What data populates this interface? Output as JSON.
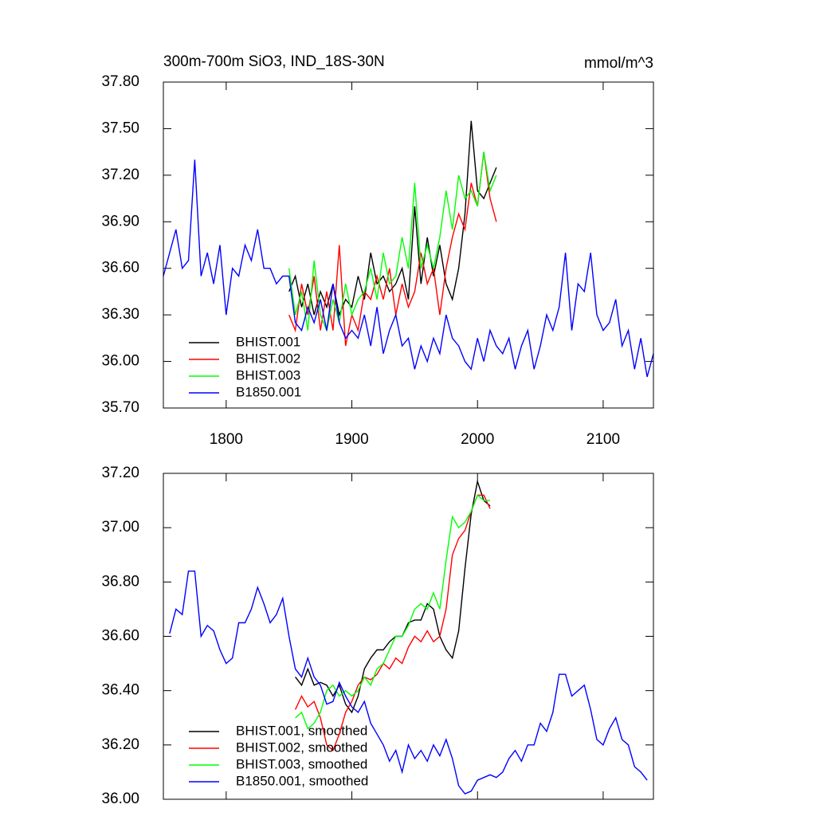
{
  "chart_data": [
    {
      "type": "line",
      "title": "300m-700m SiO3, IND_18S-30N",
      "units": "mmol/m^3",
      "xlim": [
        1750,
        2140
      ],
      "xticks": [
        1800,
        1900,
        2000,
        2100
      ],
      "ylim": [
        35.7,
        37.8
      ],
      "yticks": [
        {
          "value": 35.7,
          "label": "35.70"
        },
        {
          "value": 36.0,
          "label": "36.00"
        },
        {
          "value": 36.3,
          "label": "36.30"
        },
        {
          "value": 36.6,
          "label": "36.60"
        },
        {
          "value": 36.9,
          "label": "36.90"
        },
        {
          "value": 37.2,
          "label": "37.20"
        },
        {
          "value": 37.5,
          "label": "37.50"
        },
        {
          "value": 37.8,
          "label": "37.80"
        }
      ],
      "series": [
        {
          "name": "BHIST.001",
          "color": "#000000",
          "x": [
            1850,
            1855,
            1860,
            1865,
            1870,
            1875,
            1880,
            1885,
            1890,
            1895,
            1900,
            1905,
            1910,
            1915,
            1920,
            1925,
            1930,
            1935,
            1940,
            1945,
            1950,
            1955,
            1960,
            1965,
            1970,
            1975,
            1980,
            1985,
            1990,
            1995,
            2000,
            2005,
            2010,
            2015
          ],
          "values": [
            36.45,
            36.55,
            36.35,
            36.5,
            36.3,
            36.45,
            36.35,
            36.5,
            36.3,
            36.4,
            36.35,
            36.55,
            36.4,
            36.7,
            36.5,
            36.55,
            36.45,
            36.5,
            36.6,
            36.4,
            37.0,
            36.5,
            36.8,
            36.55,
            36.75,
            36.5,
            36.4,
            36.6,
            36.95,
            37.55,
            37.1,
            37.05,
            37.15,
            37.25
          ]
        },
        {
          "name": "BHIST.002",
          "color": "#ff0000",
          "x": [
            1850,
            1855,
            1860,
            1865,
            1870,
            1875,
            1880,
            1885,
            1890,
            1895,
            1900,
            1905,
            1910,
            1915,
            1920,
            1925,
            1930,
            1935,
            1940,
            1945,
            1950,
            1955,
            1960,
            1965,
            1970,
            1975,
            1980,
            1985,
            1990,
            1995,
            2000,
            2005,
            2010,
            2015
          ],
          "values": [
            36.3,
            36.2,
            36.5,
            36.3,
            36.55,
            36.2,
            36.45,
            36.2,
            36.75,
            36.1,
            36.3,
            36.2,
            36.45,
            36.4,
            36.55,
            36.4,
            36.6,
            36.3,
            36.5,
            36.35,
            36.45,
            36.7,
            36.5,
            36.6,
            36.3,
            36.6,
            36.8,
            36.95,
            36.85,
            37.15,
            37.0,
            37.35,
            37.05,
            36.9
          ]
        },
        {
          "name": "BHIST.003",
          "color": "#00ff00",
          "x": [
            1850,
            1855,
            1860,
            1865,
            1870,
            1875,
            1880,
            1885,
            1890,
            1895,
            1900,
            1905,
            1910,
            1915,
            1920,
            1925,
            1930,
            1935,
            1940,
            1945,
            1950,
            1955,
            1960,
            1965,
            1970,
            1975,
            1980,
            1985,
            1990,
            1995,
            2000,
            2005,
            2010,
            2015
          ],
          "values": [
            36.6,
            36.3,
            36.45,
            36.2,
            36.65,
            36.3,
            36.2,
            36.4,
            36.25,
            36.5,
            36.3,
            36.4,
            36.45,
            36.6,
            36.4,
            36.7,
            36.5,
            36.55,
            36.8,
            36.6,
            37.15,
            36.6,
            36.75,
            36.6,
            36.8,
            37.1,
            36.85,
            37.2,
            37.05,
            37.1,
            37.0,
            37.35,
            37.1,
            37.2
          ]
        },
        {
          "name": "B1850.001",
          "color": "#0000ff",
          "x": [
            1750,
            1755,
            1760,
            1765,
            1770,
            1775,
            1780,
            1785,
            1790,
            1795,
            1800,
            1805,
            1810,
            1815,
            1820,
            1825,
            1830,
            1835,
            1840,
            1845,
            1850,
            1855,
            1860,
            1865,
            1870,
            1875,
            1880,
            1885,
            1890,
            1895,
            1900,
            1905,
            1910,
            1915,
            1920,
            1925,
            1930,
            1935,
            1940,
            1945,
            1950,
            1955,
            1960,
            1965,
            1970,
            1975,
            1980,
            1985,
            1990,
            1995,
            2000,
            2005,
            2010,
            2015,
            2020,
            2025,
            2030,
            2035,
            2040,
            2045,
            2050,
            2055,
            2060,
            2065,
            2070,
            2075,
            2080,
            2085,
            2090,
            2095,
            2100,
            2105,
            2110,
            2115,
            2120,
            2125,
            2130,
            2135,
            2140
          ],
          "values": [
            36.55,
            36.7,
            36.85,
            36.6,
            36.65,
            37.3,
            36.55,
            36.7,
            36.5,
            36.75,
            36.3,
            36.6,
            36.55,
            36.75,
            36.65,
            36.85,
            36.6,
            36.6,
            36.5,
            36.55,
            36.55,
            36.25,
            36.2,
            36.35,
            36.25,
            36.4,
            36.2,
            36.5,
            36.25,
            36.15,
            36.2,
            36.15,
            36.3,
            36.1,
            36.35,
            36.05,
            36.2,
            36.3,
            36.1,
            36.15,
            35.95,
            36.1,
            36.0,
            36.15,
            36.05,
            36.3,
            36.15,
            36.1,
            36.0,
            35.95,
            36.15,
            36.0,
            36.2,
            36.1,
            36.05,
            36.15,
            35.95,
            36.1,
            36.2,
            35.95,
            36.1,
            36.3,
            36.2,
            36.35,
            36.7,
            36.2,
            36.5,
            36.45,
            36.7,
            36.3,
            36.2,
            36.25,
            36.4,
            36.1,
            36.2,
            35.95,
            36.15,
            35.9,
            36.05
          ]
        }
      ]
    },
    {
      "type": "line",
      "xlim": [
        1750,
        2140
      ],
      "ylim": [
        36.0,
        37.2
      ],
      "yticks": [
        {
          "value": 36.0,
          "label": "36.00"
        },
        {
          "value": 36.2,
          "label": "36.20"
        },
        {
          "value": 36.4,
          "label": "36.40"
        },
        {
          "value": 36.6,
          "label": "36.60"
        },
        {
          "value": 36.8,
          "label": "36.80"
        },
        {
          "value": 37.0,
          "label": "37.00"
        },
        {
          "value": 37.2,
          "label": "37.20"
        }
      ],
      "series": [
        {
          "name": "BHIST.001, smoothed",
          "color": "#000000",
          "x": [
            1855,
            1860,
            1865,
            1870,
            1875,
            1880,
            1885,
            1890,
            1895,
            1900,
            1905,
            1910,
            1915,
            1920,
            1925,
            1930,
            1935,
            1940,
            1945,
            1950,
            1955,
            1960,
            1965,
            1970,
            1975,
            1980,
            1985,
            1990,
            1995,
            2000,
            2005,
            2010
          ],
          "values": [
            36.45,
            36.42,
            36.48,
            36.42,
            36.43,
            36.42,
            36.38,
            36.42,
            36.35,
            36.32,
            36.38,
            36.48,
            36.52,
            36.55,
            36.55,
            36.58,
            36.6,
            36.6,
            36.65,
            36.66,
            36.66,
            36.72,
            36.7,
            36.6,
            36.55,
            36.52,
            36.62,
            36.85,
            37.05,
            37.17,
            37.1,
            37.08
          ]
        },
        {
          "name": "BHIST.002, smoothed",
          "color": "#ff0000",
          "x": [
            1855,
            1860,
            1865,
            1870,
            1875,
            1880,
            1885,
            1890,
            1895,
            1900,
            1905,
            1910,
            1915,
            1920,
            1925,
            1930,
            1935,
            1940,
            1945,
            1950,
            1955,
            1960,
            1965,
            1970,
            1975,
            1980,
            1985,
            1990,
            1995,
            2000,
            2005,
            2010
          ],
          "values": [
            36.33,
            36.38,
            36.34,
            36.36,
            36.3,
            36.2,
            36.18,
            36.24,
            36.32,
            36.36,
            36.42,
            36.45,
            36.44,
            36.46,
            36.5,
            36.48,
            36.52,
            36.5,
            36.56,
            36.6,
            36.58,
            36.62,
            36.58,
            36.6,
            36.7,
            36.9,
            36.96,
            36.99,
            37.06,
            37.12,
            37.12,
            37.07
          ]
        },
        {
          "name": "BHIST.003, smoothed",
          "color": "#00ff00",
          "x": [
            1855,
            1860,
            1865,
            1870,
            1875,
            1880,
            1885,
            1890,
            1895,
            1900,
            1905,
            1910,
            1915,
            1920,
            1925,
            1930,
            1935,
            1940,
            1945,
            1950,
            1955,
            1960,
            1965,
            1970,
            1975,
            1980,
            1985,
            1990,
            1995,
            2000,
            2005,
            2010
          ],
          "values": [
            36.3,
            36.32,
            36.26,
            36.28,
            36.32,
            36.4,
            36.42,
            36.38,
            36.4,
            36.38,
            36.4,
            36.45,
            36.42,
            36.48,
            36.5,
            36.55,
            36.6,
            36.6,
            36.64,
            36.7,
            36.72,
            36.7,
            36.76,
            36.7,
            36.88,
            37.04,
            37.0,
            37.02,
            37.06,
            37.12,
            37.1,
            37.1
          ]
        },
        {
          "name": "B1850.001, smoothed",
          "color": "#0000ff",
          "x": [
            1755,
            1760,
            1765,
            1770,
            1775,
            1780,
            1785,
            1790,
            1795,
            1800,
            1805,
            1810,
            1815,
            1820,
            1825,
            1830,
            1835,
            1840,
            1845,
            1850,
            1855,
            1860,
            1865,
            1870,
            1875,
            1880,
            1885,
            1890,
            1895,
            1900,
            1905,
            1910,
            1915,
            1920,
            1925,
            1930,
            1935,
            1940,
            1945,
            1950,
            1955,
            1960,
            1965,
            1970,
            1975,
            1980,
            1985,
            1990,
            1995,
            2000,
            2005,
            2010,
            2015,
            2020,
            2025,
            2030,
            2035,
            2040,
            2045,
            2050,
            2055,
            2060,
            2065,
            2070,
            2075,
            2080,
            2085,
            2090,
            2095,
            2100,
            2105,
            2110,
            2115,
            2120,
            2125,
            2130,
            2135
          ],
          "values": [
            36.61,
            36.7,
            36.68,
            36.84,
            36.84,
            36.6,
            36.64,
            36.62,
            36.55,
            36.5,
            36.52,
            36.65,
            36.65,
            36.7,
            36.78,
            36.72,
            36.65,
            36.68,
            36.74,
            36.6,
            36.48,
            36.45,
            36.52,
            36.45,
            36.42,
            36.35,
            36.36,
            36.43,
            36.38,
            36.34,
            36.32,
            36.36,
            36.28,
            36.24,
            36.2,
            36.14,
            36.18,
            36.1,
            36.2,
            36.15,
            36.18,
            36.14,
            36.2,
            36.16,
            36.22,
            36.15,
            36.05,
            36.02,
            36.03,
            36.07,
            36.08,
            36.09,
            36.08,
            36.1,
            36.15,
            36.18,
            36.14,
            36.2,
            36.2,
            36.28,
            36.25,
            36.32,
            36.46,
            36.46,
            36.38,
            36.4,
            36.42,
            36.33,
            36.22,
            36.2,
            36.26,
            36.3,
            36.22,
            36.2,
            36.12,
            36.1,
            36.07
          ]
        }
      ]
    }
  ]
}
